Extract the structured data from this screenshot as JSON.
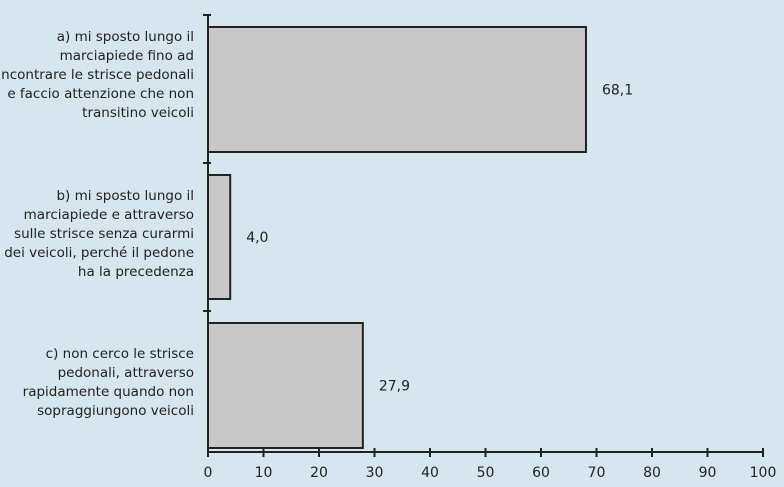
{
  "chart_data": {
    "type": "bar",
    "orientation": "horizontal",
    "categories": [
      "a) mi sposto lungo il marciapiede fino ad incontrare le strisce pedonali e faccio attenzione che non transitino veicoli",
      "b) mi sposto lungo il marciapiede e attraverso sulle strisce senza curarmi dei veicoli, perché il pedone ha la precedenza",
      "c) non cerco le strisce pedonali, attraverso rapidamente quando non sopraggiungono veicoli"
    ],
    "values": [
      68.1,
      4.0,
      27.9
    ],
    "data_labels": [
      "68,1",
      "4,0",
      "27,9"
    ],
    "xlim": [
      0,
      100
    ],
    "xticks": [
      "0",
      "10",
      "20",
      "30",
      "40",
      "50",
      "60",
      "70",
      "80",
      "90",
      "100"
    ],
    "title": "",
    "xlabel": "",
    "ylabel": "",
    "grid": false,
    "colors": {
      "bar": "#c8c8c8",
      "bar_stroke": "#222222",
      "background": "#d5e6ee",
      "axis": "#222222"
    }
  }
}
